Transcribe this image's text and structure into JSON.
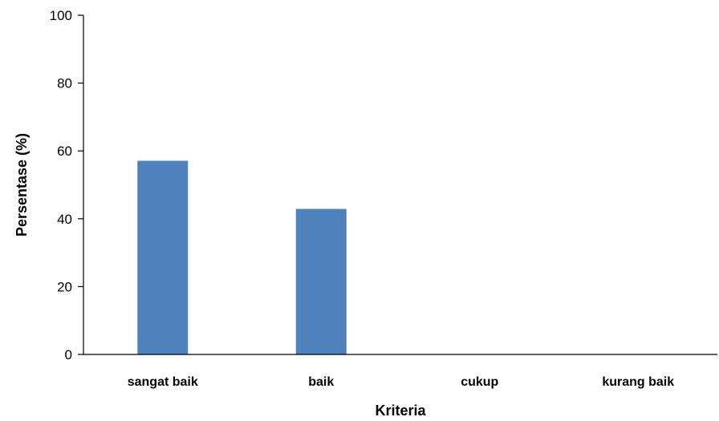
{
  "chart_data": {
    "type": "bar",
    "categories": [
      "sangat baik",
      "baik",
      "cukup",
      "kurang baik"
    ],
    "values": [
      57.1,
      42.9,
      0,
      0
    ],
    "xlabel": "Kriteria",
    "ylabel": "Persentase (%)",
    "ylim": [
      0,
      100
    ],
    "yticks": [
      0,
      20,
      40,
      60,
      80,
      100
    ],
    "grid": false,
    "legend": "none",
    "bar_color": "#4f81bd"
  }
}
